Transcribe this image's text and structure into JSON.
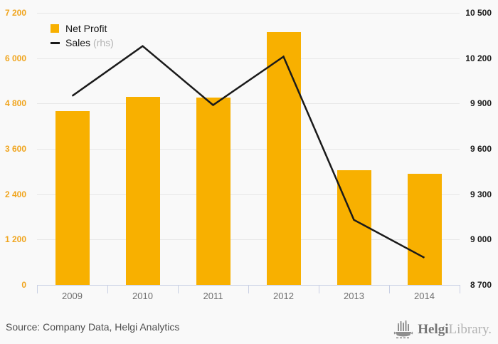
{
  "chart_data": {
    "type": "bar+line",
    "categories": [
      "2009",
      "2010",
      "2011",
      "2012",
      "2013",
      "2014"
    ],
    "series": [
      {
        "name": "Net Profit",
        "type": "bar",
        "axis": "left",
        "values": [
          4600,
          4975,
          4955,
          6690,
          3040,
          2950
        ]
      },
      {
        "name": "Sales",
        "type": "line",
        "axis": "right",
        "values": [
          9950,
          10280,
          9890,
          10210,
          9130,
          8880
        ]
      }
    ],
    "left_axis": {
      "min": 0,
      "max": 7200,
      "tick_labels": [
        "7 200",
        "6 000",
        "4 800",
        "3 600",
        "2 400",
        "1 200",
        "0"
      ]
    },
    "right_axis": {
      "min": 8700,
      "max": 10500,
      "tick_labels": [
        "10 500",
        "10 200",
        "9 900",
        "9 600",
        "9 300",
        "9 000",
        "8 700"
      ]
    },
    "grid": true,
    "legend_position": "top-left"
  },
  "legend": {
    "bar_label": "Net Profit",
    "line_label": "Sales",
    "line_label_suffix": "(rhs)"
  },
  "footer": {
    "source": "Source: Company Data, Helgi Analytics",
    "logo_primary": "Helgi",
    "logo_secondary": "Library."
  },
  "colors": {
    "bar": "#F8B000",
    "line": "#1a1a1a",
    "left_tick_label": "#F0A51E",
    "right_tick_label": "#1c1c1c",
    "background": "#f9f9f9",
    "gridline": "#e7e7e7",
    "axis": "#c9d0e4"
  }
}
